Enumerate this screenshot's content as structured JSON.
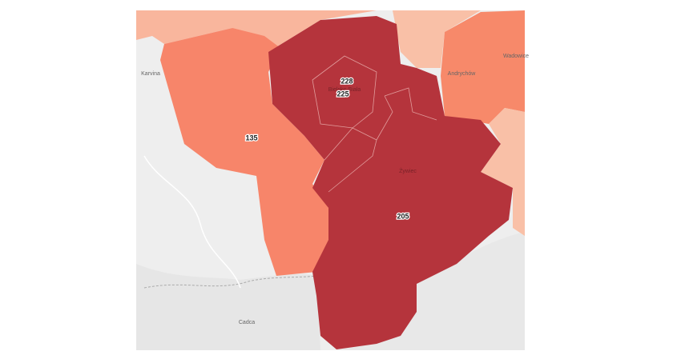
{
  "regions": [
    {
      "value": 228
    },
    {
      "value": 225
    },
    {
      "value": 135
    },
    {
      "value": 205
    }
  ],
  "places": [
    "Karvina",
    "Cadca",
    "Żywiec",
    "Andrychów",
    "Wadowice",
    "Bielsko-Biała"
  ]
}
